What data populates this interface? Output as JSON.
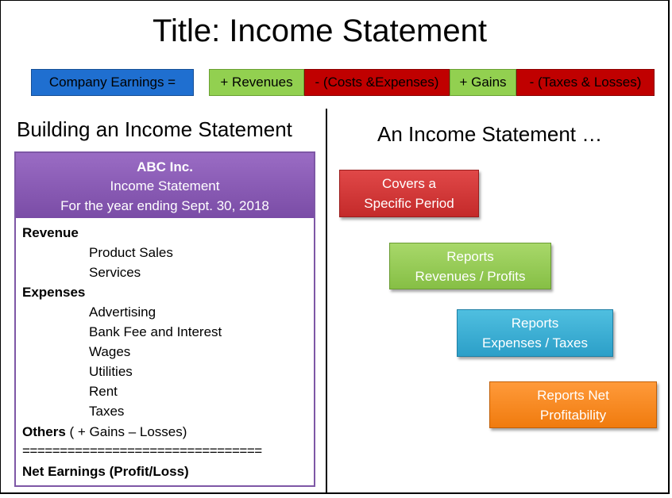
{
  "title": "Title: Income Statement",
  "equation": {
    "company": "Company Earnings =",
    "revenues": "+ Revenues",
    "costs": "- (Costs &Expenses)",
    "gains": "+ Gains",
    "taxes": "- (Taxes & Losses)"
  },
  "left_heading": "Building an Income Statement",
  "right_heading": "An Income Statement …",
  "statement": {
    "company": "ABC Inc.",
    "name": "Income Statement",
    "period": "For the year ending Sept. 30, 2018",
    "revenue_label": "Revenue",
    "revenue_items": [
      "Product Sales",
      "Services"
    ],
    "expenses_label": "Expenses",
    "expense_items": [
      "Advertising",
      "Bank Fee and Interest",
      "Wages",
      "Utilities",
      "Rent",
      "Taxes"
    ],
    "others_label": "Others",
    "others_detail": " ( + Gains – Losses)",
    "separator": "================================",
    "net_label": "Net Earnings (Profit/Loss)"
  },
  "callouts": [
    {
      "line1": "Covers a",
      "line2": "Specific Period",
      "color": "#d63a3a"
    },
    {
      "line1": "Reports",
      "line2": "Revenues / Profits",
      "color": "#92d050"
    },
    {
      "line1": "Reports",
      "line2": "Expenses / Taxes",
      "color": "#33aed6"
    },
    {
      "line1": "Reports Net",
      "line2": "Profitability",
      "color": "#f7891f"
    }
  ]
}
